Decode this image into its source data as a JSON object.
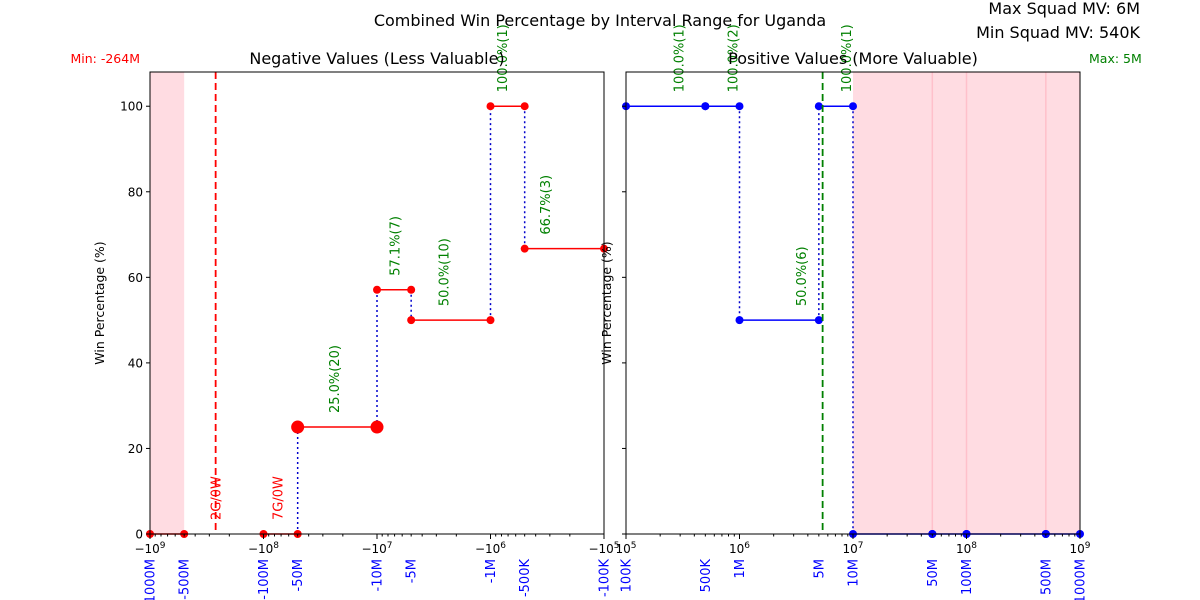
{
  "figure": {
    "title": "Combined Win Percentage by Interval Range for Uganda",
    "max_squad_mv": "Max Squad MV: 6M",
    "min_squad_mv": "Min Squad MV: 540K"
  },
  "colors": {
    "negative_line": "#ff0000",
    "positive_line": "#0000ff",
    "dotted": "#0000cc",
    "annotation": "#008000",
    "zero_annotation": "#ff0000",
    "shade": "#ffc0cb",
    "min_marker": "#ff0000",
    "max_marker": "#008000",
    "tick_label_extra": "#0000ff"
  },
  "chart_data": [
    {
      "id": "negative",
      "type": "line",
      "title": "Negative Values (Less Valuable)",
      "ylabel": "Win Percentage (%)",
      "xscale": "symlog (negative, log-magnitude)",
      "xlim": [
        -1000000000,
        -100000
      ],
      "ylim": [
        0,
        108
      ],
      "y_ticks": [
        0,
        20,
        40,
        60,
        80,
        100
      ],
      "x_ticks": [
        {
          "value": -1000000000,
          "label": "−10^9"
        },
        {
          "value": -100000000,
          "label": "−10^8"
        },
        {
          "value": -10000000,
          "label": "−10^7"
        },
        {
          "value": -1000000,
          "label": "−10^6"
        },
        {
          "value": -100000,
          "label": "−10^5"
        }
      ],
      "interval_labels": [
        {
          "value": -1000000000,
          "label": "-1000M"
        },
        {
          "value": -500000000,
          "label": "-500M"
        },
        {
          "value": -100000000,
          "label": "-100M"
        },
        {
          "value": -50000000,
          "label": "-50M"
        },
        {
          "value": -10000000,
          "label": "-10M"
        },
        {
          "value": -5000000,
          "label": "-5M"
        },
        {
          "value": -1000000,
          "label": "-1M"
        },
        {
          "value": -500000,
          "label": "-500K"
        },
        {
          "value": -100000,
          "label": "-100K"
        }
      ],
      "segments": [
        {
          "x0": -1000000000,
          "x1": -500000000,
          "y": 0,
          "big": false
        },
        {
          "x0": -100000000,
          "x1": -50000000,
          "y": 0,
          "big": false
        },
        {
          "x0": -50000000,
          "x1": -10000000,
          "y": 25,
          "big": true
        },
        {
          "x0": -10000000,
          "x1": -5000000,
          "y": 57.1,
          "big": false
        },
        {
          "x0": -5000000,
          "x1": -1000000,
          "y": 50,
          "big": false
        },
        {
          "x0": -1000000,
          "x1": -500000,
          "y": 100,
          "big": false
        },
        {
          "x0": -500000,
          "x1": -100000,
          "y": 66.7,
          "big": false
        }
      ],
      "dotted_verticals": [
        {
          "x": -50000000,
          "y0": 0,
          "y1": 25
        },
        {
          "x": -10000000,
          "y0": 25,
          "y1": 57.1
        },
        {
          "x": -5000000,
          "y0": 57.1,
          "y1": 50
        },
        {
          "x": -1000000,
          "y0": 50,
          "y1": 100
        },
        {
          "x": -500000,
          "y0": 100,
          "y1": 66.7
        }
      ],
      "annotations": [
        {
          "x": -75000000,
          "text": "7G/0W",
          "kind": "zero"
        },
        {
          "x": -24000000,
          "text": "25.0%(20)",
          "kind": "pct"
        },
        {
          "x": -7000000,
          "text": "57.1%(7)",
          "kind": "pct"
        },
        {
          "x": -2600000,
          "text": "50.0%(10)",
          "kind": "pct"
        },
        {
          "x": -790000,
          "text": "100.0%(1)",
          "kind": "pct"
        },
        {
          "x": -330000,
          "text": "66.7%(3)",
          "kind": "pct"
        }
      ],
      "min_marker": {
        "value": -264000000,
        "text": "Min: -264M",
        "zero_text": "2G/0W"
      },
      "shaded_ranges": [
        [
          -1000000000,
          -500000000
        ]
      ]
    },
    {
      "id": "positive",
      "type": "line",
      "title": "Positive Values (More Valuable)",
      "ylabel": "Win Percentage (%)",
      "xscale": "log",
      "xlim": [
        100000,
        1000000000
      ],
      "ylim": [
        0,
        108
      ],
      "y_ticks": [
        0,
        20,
        40,
        60,
        80,
        100
      ],
      "x_ticks": [
        {
          "value": 100000,
          "label": "10^5"
        },
        {
          "value": 1000000,
          "label": "10^6"
        },
        {
          "value": 10000000,
          "label": "10^7"
        },
        {
          "value": 100000000,
          "label": "10^8"
        },
        {
          "value": 1000000000,
          "label": "10^9"
        }
      ],
      "interval_labels": [
        {
          "value": 100000,
          "label": "100K"
        },
        {
          "value": 500000,
          "label": "500K"
        },
        {
          "value": 1000000,
          "label": "1M"
        },
        {
          "value": 5000000,
          "label": "5M"
        },
        {
          "value": 10000000,
          "label": "10M"
        },
        {
          "value": 50000000,
          "label": "50M"
        },
        {
          "value": 100000000,
          "label": "100M"
        },
        {
          "value": 500000000,
          "label": "500M"
        },
        {
          "value": 1000000000,
          "label": "1000M"
        }
      ],
      "segments": [
        {
          "x0": 100000,
          "x1": 500000,
          "y": 100,
          "big": false
        },
        {
          "x0": 500000,
          "x1": 1000000,
          "y": 100,
          "big": false
        },
        {
          "x0": 1000000,
          "x1": 5000000,
          "y": 50,
          "big": false
        },
        {
          "x0": 5000000,
          "x1": 10000000,
          "y": 100,
          "big": false
        },
        {
          "x0": 10000000,
          "x1": 50000000,
          "y": 0,
          "big": false
        },
        {
          "x0": 50000000,
          "x1": 100000000,
          "y": 0,
          "big": false
        },
        {
          "x0": 100000000,
          "x1": 500000000,
          "y": 0,
          "big": false
        },
        {
          "x0": 500000000,
          "x1": 1000000000,
          "y": 0,
          "big": false
        }
      ],
      "dotted_verticals": [
        {
          "x": 1000000,
          "y0": 100,
          "y1": 50
        },
        {
          "x": 5000000,
          "y0": 50,
          "y1": 100
        },
        {
          "x": 10000000,
          "y0": 100,
          "y1": 0
        }
      ],
      "annotations": [
        {
          "x": 290000,
          "text": "100.0%(1)",
          "kind": "pct"
        },
        {
          "x": 870000,
          "text": "100.0%(2)",
          "kind": "pct"
        },
        {
          "x": 3500000,
          "text": "50.0%(6)",
          "kind": "pct"
        },
        {
          "x": 8700000,
          "text": "100.0%(1)",
          "kind": "pct"
        }
      ],
      "max_marker": {
        "value": 5400000,
        "text": "Max: 5M"
      },
      "shaded_ranges": [
        [
          10000000,
          1000000000
        ]
      ],
      "faint_verticals": [
        50000000,
        100000000,
        500000000
      ]
    }
  ]
}
